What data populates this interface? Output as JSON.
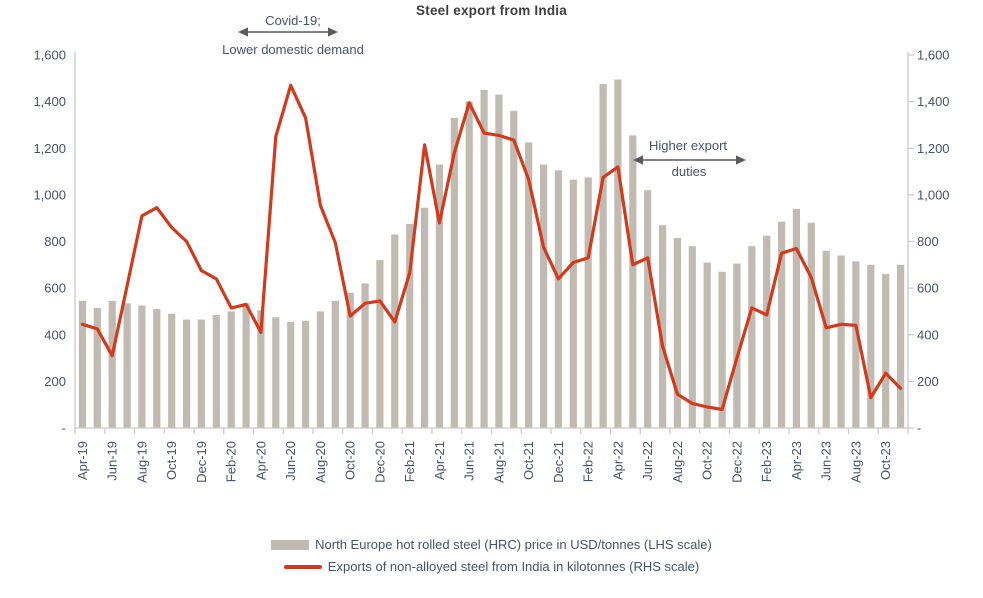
{
  "title": "Steel export from India",
  "annotations": {
    "covid": {
      "line1": "Covid-19;",
      "line2": "Lower domestic demand"
    },
    "duties": {
      "line1": "Higher export",
      "line2": "duties"
    }
  },
  "legend": [
    {
      "swatch": "bar",
      "label": "North Europe hot rolled steel (HRC) price in USD/tonnes (LHS scale)"
    },
    {
      "swatch": "line",
      "label": "Exports of non-alloyed steel from India in kilotonnes (RHS scale)"
    }
  ],
  "colors": {
    "bar": "#c1bab0",
    "line": "#d13a1d",
    "axis": "#c9c9c9",
    "text": "#44546a",
    "title": "#3f3f3f",
    "arrow": "#595959"
  },
  "chart_data": {
    "type": "bar+line (dual axis)",
    "title": "Steel export from India",
    "categories": [
      "Apr-19",
      "May-19",
      "Jun-19",
      "Jul-19",
      "Aug-19",
      "Sep-19",
      "Oct-19",
      "Nov-19",
      "Dec-19",
      "Jan-20",
      "Feb-20",
      "Mar-20",
      "Apr-20",
      "May-20",
      "Jun-20",
      "Jul-20",
      "Aug-20",
      "Sep-20",
      "Oct-20",
      "Nov-20",
      "Dec-20",
      "Jan-21",
      "Feb-21",
      "Mar-21",
      "Apr-21",
      "May-21",
      "Jun-21",
      "Jul-21",
      "Aug-21",
      "Sep-21",
      "Oct-21",
      "Nov-21",
      "Dec-21",
      "Jan-22",
      "Feb-22",
      "Mar-22",
      "Apr-22",
      "May-22",
      "Jun-22",
      "Jul-22",
      "Aug-22",
      "Sep-22",
      "Oct-22",
      "Nov-22",
      "Dec-22",
      "Jan-23",
      "Feb-23",
      "Mar-23",
      "Apr-23",
      "May-23",
      "Jun-23",
      "Jul-23",
      "Aug-23",
      "Sep-23",
      "Oct-23",
      "Nov-23"
    ],
    "x_tick_labels": [
      "Apr-19",
      "Jun-19",
      "Aug-19",
      "Oct-19",
      "Dec-19",
      "Feb-20",
      "Apr-20",
      "Jun-20",
      "Aug-20",
      "Oct-20",
      "Dec-20",
      "Feb-21",
      "Apr-21",
      "Jun-21",
      "Aug-21",
      "Oct-21",
      "Dec-21",
      "Feb-22",
      "Apr-22",
      "Jun-22",
      "Aug-22",
      "Oct-22",
      "Dec-22",
      "Feb-23",
      "Apr-23",
      "Jun-23",
      "Aug-23",
      "Oct-23"
    ],
    "series": [
      {
        "name": "North Europe hot rolled steel (HRC) price in USD/tonnes (LHS scale)",
        "type": "bar",
        "axis": "left",
        "values": [
          545,
          515,
          545,
          535,
          525,
          510,
          490,
          465,
          465,
          485,
          500,
          535,
          505,
          475,
          455,
          460,
          500,
          545,
          580,
          620,
          720,
          830,
          875,
          945,
          1130,
          1330,
          1400,
          1450,
          1430,
          1360,
          1225,
          1130,
          1105,
          1065,
          1075,
          1475,
          1495,
          1255,
          1020,
          870,
          815,
          780,
          710,
          670,
          705,
          780,
          825,
          885,
          940,
          880,
          760,
          740,
          715,
          700,
          660,
          700
        ]
      },
      {
        "name": "Exports of non-alloyed steel from India in kilotonnes (RHS scale)",
        "type": "line",
        "axis": "right",
        "values": [
          445,
          425,
          310,
          610,
          910,
          945,
          860,
          800,
          675,
          640,
          515,
          530,
          410,
          1250,
          1470,
          1330,
          955,
          795,
          480,
          535,
          545,
          455,
          665,
          1215,
          880,
          1180,
          1395,
          1265,
          1255,
          1235,
          1065,
          775,
          640,
          710,
          730,
          1075,
          1120,
          700,
          730,
          350,
          145,
          105,
          90,
          80,
          300,
          515,
          485,
          750,
          770,
          645,
          430,
          445,
          440,
          130,
          235,
          170
        ]
      }
    ],
    "y_left": {
      "min": 0,
      "max": 1600,
      "step": 200,
      "tick_labels": [
        "-",
        "200",
        "400",
        "600",
        "800",
        "1,000",
        "1,200",
        "1,400",
        "1,600"
      ]
    },
    "y_right": {
      "min": 0,
      "max": 1600,
      "step": 200,
      "tick_labels": [
        "-",
        "200",
        "400",
        "600",
        "800",
        "1,000",
        "1,200",
        "1,400",
        "1,600"
      ]
    },
    "grid": false,
    "legend_position": "bottom"
  }
}
